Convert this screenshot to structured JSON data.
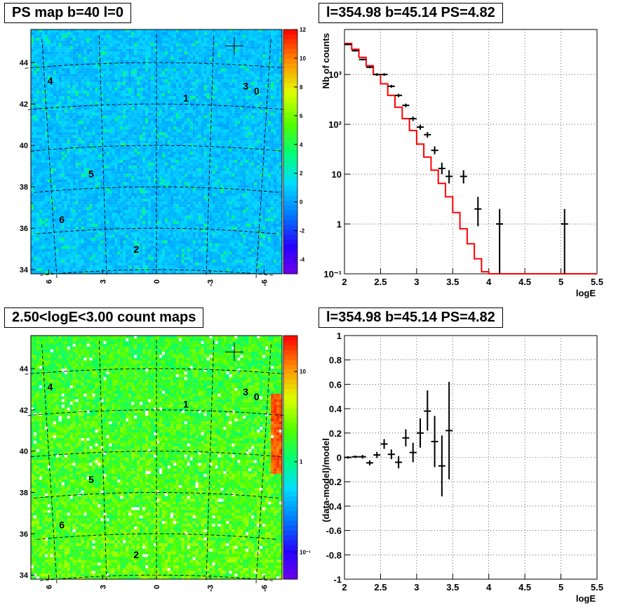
{
  "chart_data": [
    {
      "type": "heatmap",
      "title": "PS map b=40 l=0",
      "xlabel": "",
      "ylabel": "",
      "x_ticks": [
        "6",
        "3",
        "0",
        "-3",
        "-6"
      ],
      "y_ticks": [
        "34",
        "36",
        "38",
        "40",
        "42",
        "44"
      ],
      "ylim": [
        33.8,
        45.6
      ],
      "xlim": [
        7,
        -7
      ],
      "color_scale": {
        "min": -5,
        "max": 12,
        "log": false,
        "ticks": [
          "12",
          "10",
          "8",
          "6",
          "4",
          "2",
          "0",
          "-2",
          "-4"
        ],
        "tick_values": [
          12,
          10,
          8,
          6,
          4,
          2,
          0,
          -2,
          -4
        ]
      },
      "labels": [
        {
          "text": "4",
          "l": 5.7,
          "b": 43.3
        },
        {
          "text": "1",
          "l": -1.6,
          "b": 42.3
        },
        {
          "text": "3",
          "l": -4.8,
          "b": 43.0
        },
        {
          "text": "0",
          "l": -5.4,
          "b": 42.8
        },
        {
          "text": "5",
          "l": 3.7,
          "b": 38.7
        },
        {
          "text": "6",
          "l": 5.5,
          "b": 36.6
        },
        {
          "text": "2",
          "l": 1.2,
          "b": 35.0
        }
      ],
      "marker": {
        "l": -4.1,
        "b": 44.9
      },
      "grid": true
    },
    {
      "type": "line",
      "title": "l=354.98 b=45.14 PS=4.82",
      "xlabel": "logE",
      "ylabel": "Nb of counts",
      "log_y": true,
      "xlim": [
        2,
        5.5
      ],
      "ylim": [
        0.1,
        8000
      ],
      "x_ticks": [
        "2",
        "2.5",
        "3",
        "3.5",
        "4",
        "4.5",
        "5",
        "5.5"
      ],
      "y_ticks": [
        "10⁻¹",
        "1",
        "10",
        "10²",
        "10³"
      ],
      "grid": true,
      "series": [
        {
          "kind": "step",
          "color": "#ff0000",
          "x_edges": [
            2.0,
            2.1,
            2.2,
            2.3,
            2.4,
            2.5,
            2.6,
            2.7,
            2.8,
            2.9,
            3.0,
            3.1,
            3.2,
            3.3,
            3.4,
            3.5,
            3.6,
            3.7,
            3.8,
            3.9,
            4.0,
            4.1,
            4.2,
            4.3,
            4.4,
            4.5,
            4.6,
            4.7,
            4.8,
            4.9,
            5.0,
            5.1,
            5.2,
            5.3,
            5.4,
            5.5
          ],
          "values": [
            4200,
            3200,
            2200,
            1500,
            1000,
            650,
            380,
            220,
            130,
            75,
            40,
            22,
            12,
            6.5,
            3.5,
            1.7,
            0.8,
            0.4,
            0.2,
            0.11,
            0.08,
            0.08,
            0.08,
            0.08,
            0.08,
            0.08,
            0.08,
            0.08,
            0.08,
            0.08,
            0.08,
            0.08,
            0.08,
            0.08,
            0.08
          ]
        },
        {
          "kind": "points",
          "color": "#000000",
          "points": [
            {
              "x": 2.05,
              "y": 4000,
              "lo": 3880,
              "hi": 4120
            },
            {
              "x": 2.15,
              "y": 3000,
              "lo": 2890,
              "hi": 3110
            },
            {
              "x": 2.25,
              "y": 2000,
              "lo": 1910,
              "hi": 2090
            },
            {
              "x": 2.35,
              "y": 1400,
              "lo": 1330,
              "hi": 1470
            },
            {
              "x": 2.45,
              "y": 1000,
              "lo": 940,
              "hi": 1060
            },
            {
              "x": 2.55,
              "y": 1000,
              "lo": 940,
              "hi": 1060
            },
            {
              "x": 2.65,
              "y": 580,
              "lo": 540,
              "hi": 620
            },
            {
              "x": 2.75,
              "y": 380,
              "lo": 350,
              "hi": 410
            },
            {
              "x": 2.85,
              "y": 240,
              "lo": 220,
              "hi": 260
            },
            {
              "x": 2.95,
              "y": 130,
              "lo": 117,
              "hi": 143
            },
            {
              "x": 3.05,
              "y": 88,
              "lo": 78,
              "hi": 98
            },
            {
              "x": 3.15,
              "y": 62,
              "lo": 54,
              "hi": 70
            },
            {
              "x": 3.25,
              "y": 30,
              "lo": 25,
              "hi": 36
            },
            {
              "x": 3.35,
              "y": 13,
              "lo": 10,
              "hi": 17
            },
            {
              "x": 3.45,
              "y": 9,
              "lo": 6.5,
              "hi": 12
            },
            {
              "x": 3.65,
              "y": 9,
              "lo": 6.5,
              "hi": 12
            },
            {
              "x": 3.85,
              "y": 2,
              "lo": 0.9,
              "hi": 3.5
            },
            {
              "x": 4.15,
              "y": 1,
              "lo": 0.1,
              "hi": 2
            },
            {
              "x": 5.05,
              "y": 1,
              "lo": 0.1,
              "hi": 2
            }
          ]
        }
      ]
    },
    {
      "type": "heatmap",
      "title": "2.50<logE<3.00 count maps",
      "xlabel": "",
      "ylabel": "",
      "x_ticks": [
        "6",
        "3",
        "0",
        "-3",
        "-6"
      ],
      "y_ticks": [
        "34",
        "36",
        "38",
        "40",
        "42",
        "44"
      ],
      "ylim": [
        33.8,
        45.6
      ],
      "xlim": [
        7,
        -7
      ],
      "color_scale": {
        "min": 0.05,
        "max": 25,
        "log": true,
        "ticks": [
          "10",
          "1",
          "10⁻¹"
        ],
        "tick_values": [
          10,
          1,
          0.1
        ]
      },
      "labels": [
        {
          "text": "4",
          "l": 5.7,
          "b": 43.3
        },
        {
          "text": "1",
          "l": -1.6,
          "b": 42.3
        },
        {
          "text": "3",
          "l": -4.8,
          "b": 43.0
        },
        {
          "text": "0",
          "l": -5.4,
          "b": 42.8
        },
        {
          "text": "5",
          "l": 3.7,
          "b": 38.7
        },
        {
          "text": "6",
          "l": 5.5,
          "b": 36.6
        },
        {
          "text": "2",
          "l": 1.2,
          "b": 35.0
        }
      ],
      "marker": {
        "l": -4.1,
        "b": 44.9
      },
      "grid": true
    },
    {
      "type": "scatter",
      "title": "l=354.98 b=45.14 PS=4.82",
      "xlabel": "logE",
      "ylabel": "(data-model)/model",
      "xlim": [
        2,
        5.5
      ],
      "ylim": [
        -1,
        1
      ],
      "x_ticks": [
        "2",
        "2.5",
        "3",
        "3.5",
        "4",
        "4.5",
        "5",
        "5.5"
      ],
      "y_ticks": [
        "1",
        "0.8",
        "0.6",
        "0.4",
        "0.2",
        "0",
        "-0.2",
        "-0.4",
        "-0.6",
        "-0.8",
        "-1"
      ],
      "grid": true,
      "points": [
        {
          "x": 2.05,
          "y": 0.0,
          "lo": -0.01,
          "hi": 0.01
        },
        {
          "x": 2.15,
          "y": 0.005,
          "lo": -0.005,
          "hi": 0.015
        },
        {
          "x": 2.25,
          "y": 0.005,
          "lo": -0.01,
          "hi": 0.02
        },
        {
          "x": 2.35,
          "y": -0.045,
          "lo": -0.065,
          "hi": -0.025
        },
        {
          "x": 2.45,
          "y": 0.02,
          "lo": -0.005,
          "hi": 0.045
        },
        {
          "x": 2.55,
          "y": 0.11,
          "lo": 0.07,
          "hi": 0.15
        },
        {
          "x": 2.65,
          "y": 0.025,
          "lo": -0.015,
          "hi": 0.065
        },
        {
          "x": 2.75,
          "y": -0.04,
          "lo": -0.09,
          "hi": 0.01
        },
        {
          "x": 2.85,
          "y": 0.16,
          "lo": 0.09,
          "hi": 0.23
        },
        {
          "x": 2.95,
          "y": 0.04,
          "lo": -0.04,
          "hi": 0.12
        },
        {
          "x": 3.05,
          "y": 0.2,
          "lo": 0.08,
          "hi": 0.32
        },
        {
          "x": 3.15,
          "y": 0.38,
          "lo": 0.22,
          "hi": 0.55
        },
        {
          "x": 3.25,
          "y": 0.13,
          "lo": -0.08,
          "hi": 0.34
        },
        {
          "x": 3.35,
          "y": -0.07,
          "lo": -0.32,
          "hi": 0.18
        },
        {
          "x": 3.45,
          "y": 0.22,
          "lo": -0.18,
          "hi": 0.62
        }
      ]
    }
  ]
}
